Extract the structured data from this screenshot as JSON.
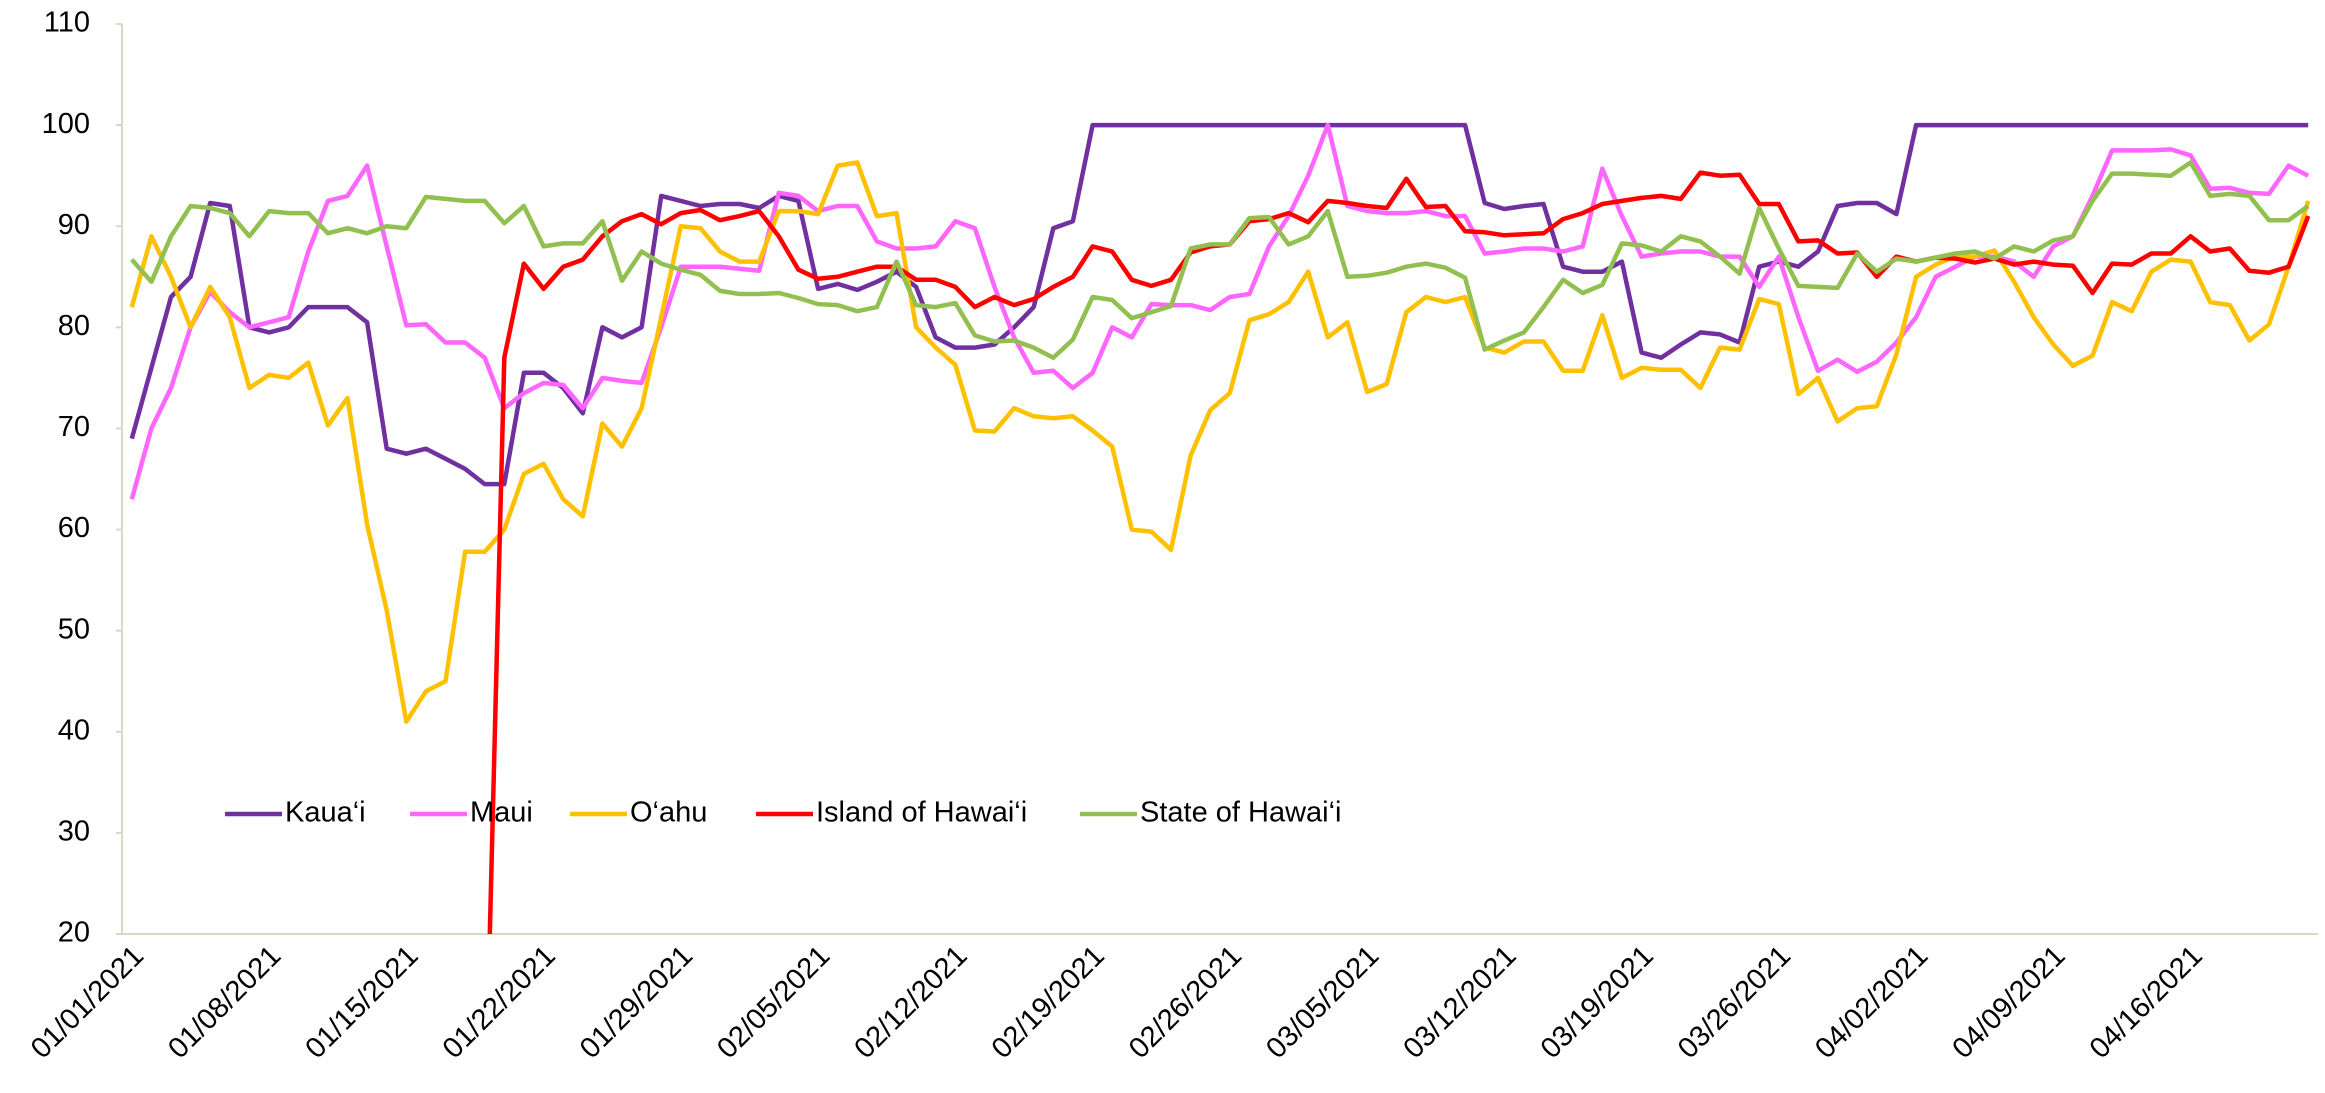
{
  "chart_data": {
    "type": "line",
    "categories": [
      "01/01/2021",
      null,
      null,
      null,
      null,
      null,
      null,
      "01/08/2021",
      null,
      null,
      null,
      null,
      null,
      null,
      "01/15/2021",
      null,
      null,
      null,
      null,
      null,
      null,
      "01/22/2021",
      null,
      null,
      null,
      null,
      null,
      null,
      "01/29/2021",
      null,
      null,
      null,
      null,
      null,
      null,
      "02/05/2021",
      null,
      null,
      null,
      null,
      null,
      null,
      "02/12/2021",
      null,
      null,
      null,
      null,
      null,
      null,
      "02/19/2021",
      null,
      null,
      null,
      null,
      null,
      null,
      "02/26/2021",
      null,
      null,
      null,
      null,
      null,
      null,
      "03/05/2021",
      null,
      null,
      null,
      null,
      null,
      null,
      "03/12/2021",
      null,
      null,
      null,
      null,
      null,
      null,
      "03/19/2021",
      null,
      null,
      null,
      null,
      null,
      null,
      "03/26/2021",
      null,
      null,
      null,
      null,
      null,
      null,
      "04/02/2021",
      null,
      null,
      null,
      null,
      null,
      null,
      "04/09/2021",
      null,
      null,
      null,
      null,
      null,
      null,
      "04/16/2021",
      null,
      null,
      null,
      null,
      null,
      null
    ],
    "series": [
      {
        "name": "Kaua‘i",
        "color": "#7030a0",
        "values": [
          69,
          76,
          83,
          85,
          92.3,
          92,
          80,
          79.5,
          80,
          82,
          82,
          82,
          80.5,
          68,
          67.5,
          68,
          67,
          66,
          64.5,
          64.5,
          75.5,
          75.5,
          74,
          71.5,
          80,
          79,
          80,
          93,
          92.5,
          92,
          92.2,
          92.2,
          91.8,
          93,
          92.5,
          83.8,
          84.3,
          83.7,
          84.5,
          85.5,
          84,
          79,
          78,
          78,
          78.3,
          80,
          82,
          89.8,
          90.5,
          100,
          100,
          100,
          100,
          100,
          100,
          100,
          100,
          100,
          100,
          100,
          100,
          100,
          100,
          100,
          100,
          100,
          100,
          100,
          100,
          92.3,
          91.7,
          92,
          92.2,
          86,
          85.5,
          85.5,
          86.5,
          77.5,
          77,
          78.3,
          79.5,
          79.3,
          78.5,
          86,
          86.5,
          86,
          87.5,
          92,
          92.3,
          92.3,
          91.2,
          100,
          100,
          100,
          100,
          100,
          100,
          100,
          100,
          100,
          100,
          100,
          100,
          100,
          100,
          100,
          100,
          100,
          100,
          100,
          100,
          100
        ]
      },
      {
        "name": "Maui",
        "color": "#ff66ff",
        "values": [
          63,
          70,
          74,
          80,
          83.5,
          81.5,
          80,
          80.5,
          81,
          87.5,
          92.5,
          93,
          96,
          88,
          80.2,
          80.3,
          78.5,
          78.5,
          77,
          72,
          73.5,
          74.5,
          74.3,
          72,
          75,
          74.7,
          74.5,
          80,
          86,
          86,
          86,
          85.8,
          85.6,
          93.3,
          93,
          91.5,
          92,
          92,
          88.5,
          87.8,
          87.8,
          88,
          90.5,
          89.8,
          84,
          79,
          75.5,
          75.7,
          74,
          75.5,
          80,
          79,
          82.3,
          82.2,
          82.2,
          81.7,
          83,
          83.3,
          88,
          91,
          95,
          100,
          92,
          91.5,
          91.3,
          91.3,
          91.5,
          91,
          91,
          87.3,
          87.5,
          87.8,
          87.8,
          87.5,
          88,
          95.7,
          91,
          87,
          87.3,
          87.5,
          87.5,
          87,
          87,
          84,
          87,
          81,
          75.7,
          76.8,
          75.6,
          76.6,
          78.5,
          81,
          85,
          86,
          87,
          87,
          86.5,
          85,
          88,
          89,
          93,
          97.5,
          97.5,
          97.5,
          97.6,
          97,
          93.7,
          93.8,
          93.3,
          93.2,
          96,
          95
        ]
      },
      {
        "name": "O‘ahu",
        "color": "#ffc000",
        "values": [
          82,
          89,
          85,
          80,
          84,
          81,
          74,
          75.3,
          75,
          76.5,
          70.3,
          73,
          60.5,
          52,
          41,
          44,
          45,
          57.8,
          57.8,
          60,
          65.5,
          66.5,
          63,
          61.3,
          70.5,
          68.2,
          72,
          81,
          90,
          89.8,
          87.5,
          86.5,
          86.5,
          91.5,
          91.5,
          91.2,
          96,
          96.3,
          91,
          91.3,
          80,
          78,
          76.3,
          69.8,
          69.7,
          72,
          71.2,
          71,
          71.2,
          69.8,
          68.2,
          60,
          59.8,
          58,
          67.3,
          71.8,
          73.5,
          80.7,
          81.3,
          82.5,
          85.5,
          79,
          80.5,
          73.6,
          74.4,
          81.5,
          83,
          82.5,
          83,
          78,
          77.5,
          78.6,
          78.6,
          75.7,
          75.7,
          81.2,
          75,
          76,
          75.8,
          75.8,
          74,
          78,
          77.8,
          82.8,
          82.3,
          73.4,
          75,
          70.7,
          72,
          72.2,
          77.3,
          85,
          86.2,
          87,
          87,
          87.6,
          84.5,
          81,
          78.3,
          76.2,
          77.2,
          82.5,
          81.6,
          85.5,
          86.7,
          86.5,
          82.5,
          82.2,
          78.7,
          80.3,
          86,
          92.5
        ]
      },
      {
        "name": "Island of Hawai‘i",
        "color": "#ff0000",
        "values": [
          null,
          null,
          null,
          null,
          null,
          null,
          null,
          null,
          null,
          null,
          null,
          null,
          null,
          null,
          null,
          null,
          null,
          null,
          0,
          77,
          86.3,
          83.8,
          86,
          86.7,
          89,
          90.5,
          91.2,
          90.2,
          91.3,
          91.6,
          90.6,
          91,
          91.5,
          89,
          85.7,
          84.8,
          85,
          85.5,
          86,
          86,
          84.7,
          84.7,
          84,
          82,
          83,
          82.2,
          82.8,
          84,
          85,
          88,
          87.5,
          84.7,
          84.1,
          84.7,
          87.4,
          88,
          88.2,
          90.5,
          90.7,
          91.3,
          90.4,
          92.5,
          92.3,
          92,
          91.8,
          94.7,
          91.9,
          92,
          89.5,
          89.4,
          89.1,
          89.2,
          89.3,
          90.7,
          91.3,
          92.2,
          92.5,
          92.8,
          93,
          92.7,
          95.3,
          95,
          95.1,
          92.2,
          92.2,
          88.5,
          88.6,
          87.3,
          87.4,
          85,
          87,
          86.5,
          86.9,
          86.8,
          86.4,
          86.8,
          86.2,
          86.5,
          86.2,
          86.1,
          83.4,
          86.3,
          86.2,
          87.3,
          87.3,
          89,
          87.5,
          87.8,
          85.6,
          85.4,
          86,
          91
        ]
      },
      {
        "name": "State of Hawai‘i",
        "color": "#92c050",
        "values": [
          86.7,
          84.5,
          89,
          92,
          91.8,
          91.3,
          89,
          91.5,
          91.3,
          91.3,
          89.3,
          89.8,
          89.3,
          90,
          89.8,
          92.9,
          92.7,
          92.5,
          92.5,
          90.3,
          92,
          88,
          88.3,
          88.3,
          90.5,
          84.6,
          87.5,
          86.3,
          85.7,
          85.2,
          83.6,
          83.3,
          83.3,
          83.4,
          82.9,
          82.3,
          82.2,
          81.6,
          82,
          86.5,
          82.2,
          82,
          82.4,
          79.2,
          78.6,
          78.7,
          78,
          77,
          78.8,
          83,
          82.7,
          80.9,
          81.5,
          82.1,
          87.8,
          88.2,
          88.2,
          90.8,
          90.9,
          88.2,
          89,
          91.5,
          85,
          85.1,
          85.4,
          86,
          86.3,
          85.9,
          84.9,
          77.8,
          78.7,
          79.5,
          82,
          84.7,
          83.4,
          84.2,
          88.3,
          88.1,
          87.5,
          89,
          88.5,
          87,
          85.3,
          91.8,
          87.8,
          84.1,
          84,
          83.9,
          87.3,
          85.5,
          86.8,
          86.5,
          86.9,
          87.3,
          87.5,
          86.8,
          88,
          87.5,
          88.6,
          89,
          92.5,
          95.2,
          95.2,
          95.1,
          95,
          96.3,
          93,
          93.2,
          93,
          90.6,
          90.6,
          92
        ]
      }
    ],
    "ylim": [
      20,
      110
    ],
    "yticks": [
      20,
      30,
      40,
      50,
      60,
      70,
      80,
      90,
      100,
      110
    ],
    "grid": false
  }
}
